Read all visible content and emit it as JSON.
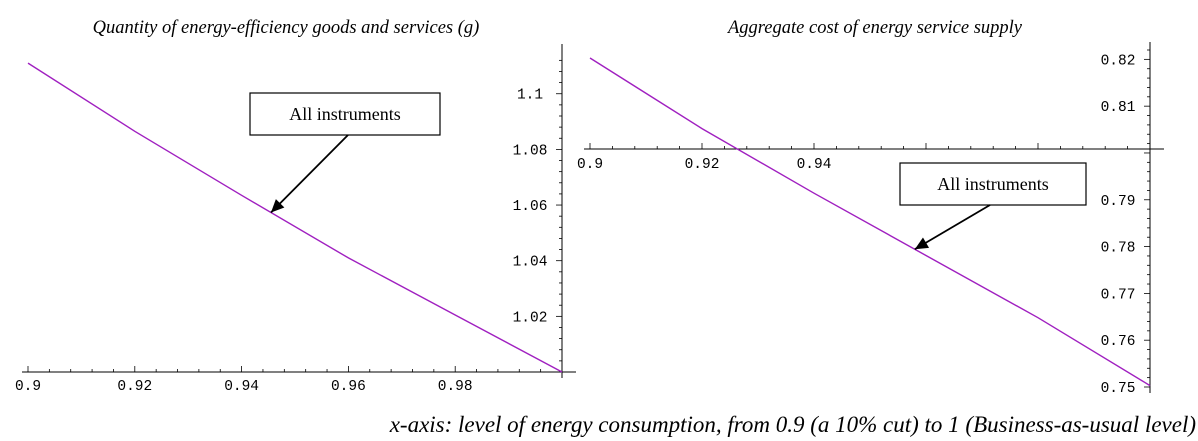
{
  "chart_data": [
    {
      "type": "line",
      "title": "Quantity of energy-efficiency goods and services (g)",
      "x": [
        0.9,
        0.92,
        0.94,
        0.96,
        0.98,
        1.0
      ],
      "series": [
        {
          "values": [
            1.111,
            1.0865,
            1.0635,
            1.041,
            1.0205,
            1.0
          ]
        }
      ],
      "xlim": [
        0.9,
        1.0
      ],
      "ylim": [
        1.0,
        1.115
      ],
      "xticks": [
        "0.9",
        "0.92",
        "0.94",
        "0.96",
        "0.98"
      ],
      "yticks": [
        "1.02",
        "1.04",
        "1.06",
        "1.08",
        "1.1"
      ],
      "annotation": {
        "text": "All instruments",
        "x": 0.9455
      },
      "grid": false
    },
    {
      "type": "line",
      "title": "Aggregate cost of energy service supply",
      "x": [
        0.9,
        0.92,
        0.94,
        0.96,
        0.98,
        1.0
      ],
      "series": [
        {
          "values": [
            0.8203,
            0.8052,
            0.7914,
            0.7781,
            0.7648,
            0.7503
          ]
        }
      ],
      "xlim": [
        0.9,
        1.0
      ],
      "ylim": [
        0.75,
        0.822
      ],
      "xticks": [
        "0.9",
        "0.92",
        "0.94"
      ],
      "yticks": [
        "0.75",
        "0.76",
        "0.77",
        "0.78",
        "0.79",
        "0.81",
        "0.82"
      ],
      "annotation": {
        "text": "All instruments",
        "x": 0.958
      },
      "grid": false
    }
  ],
  "footer": "x-axis: level of energy consumption, from 0.9 (a 10% cut) to 1 (Business-as-usual level)"
}
